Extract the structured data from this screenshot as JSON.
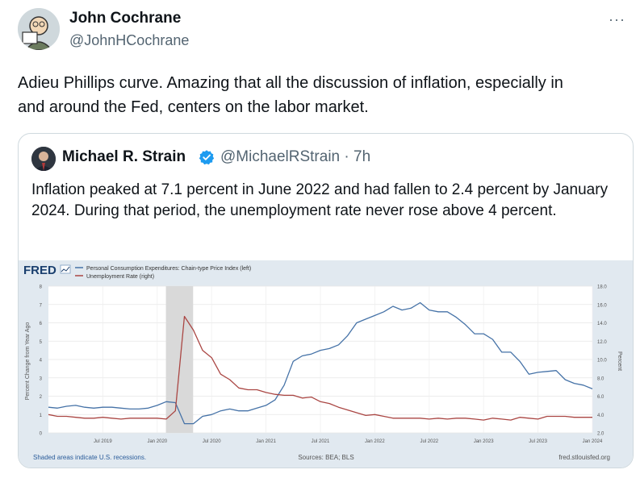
{
  "tweet": {
    "author_name": "John Cochrane",
    "author_handle": "@JohnHCochrane",
    "more_icon": "···",
    "text": "Adieu Phillips curve. Amazing that all the discussion of inflation, especially in and around the Fed, centers on the labor market."
  },
  "quote": {
    "author_name": "Michael R. Strain",
    "author_handle": "@MichaelRStrain",
    "separator": "·",
    "time": "7h",
    "text": "Inflation peaked at 7.1 percent in June 2022 and had fallen to 2.4 percent by January 2024. During that period, the unemployment rate never rose above 4 percent."
  },
  "chart_data": {
    "type": "line",
    "logo": "FRED",
    "legend": [
      {
        "name": "Personal Consumption Expenditures: Chain-type Price Index (left)",
        "color": "#4572a7"
      },
      {
        "name": "Unemployment Rate (right)",
        "color": "#aa4643"
      }
    ],
    "ylabel_left": "Percent Change from Year Ago",
    "ylabel_right": "Percent",
    "y_left_ticks": [
      "0",
      "1",
      "2",
      "3",
      "4",
      "5",
      "6",
      "7",
      "8"
    ],
    "y_right_ticks": [
      "2.0",
      "4.0",
      "6.0",
      "8.0",
      "10.0",
      "12.0",
      "14.0",
      "16.0",
      "18.0"
    ],
    "ylim_left": [
      0,
      8
    ],
    "ylim_right": [
      2,
      18
    ],
    "x_ticks": [
      "Jul 2019",
      "Jan 2020",
      "Jul 2020",
      "Jan 2021",
      "Jul 2021",
      "Jan 2022",
      "Jul 2022",
      "Jan 2023",
      "Jul 2023",
      "Jan 2024"
    ],
    "recession": [
      2020.08,
      2020.33
    ],
    "series": [
      {
        "name": "Personal Consumption Expenditures: Chain-type Price Index (left)",
        "axis": "left",
        "x": [
          2019.0,
          2019.083,
          2019.167,
          2019.25,
          2019.333,
          2019.417,
          2019.5,
          2019.583,
          2019.667,
          2019.75,
          2019.833,
          2019.917,
          2020.0,
          2020.083,
          2020.167,
          2020.25,
          2020.333,
          2020.417,
          2020.5,
          2020.583,
          2020.667,
          2020.75,
          2020.833,
          2020.917,
          2021.0,
          2021.083,
          2021.167,
          2021.25,
          2021.333,
          2021.417,
          2021.5,
          2021.583,
          2021.667,
          2021.75,
          2021.833,
          2021.917,
          2022.0,
          2022.083,
          2022.167,
          2022.25,
          2022.333,
          2022.417,
          2022.5,
          2022.583,
          2022.667,
          2022.75,
          2022.833,
          2022.917,
          2023.0,
          2023.083,
          2023.167,
          2023.25,
          2023.333,
          2023.417,
          2023.5,
          2023.583,
          2023.667,
          2023.75,
          2023.833,
          2023.917,
          2024.0
        ],
        "values": [
          1.4,
          1.35,
          1.45,
          1.5,
          1.4,
          1.35,
          1.4,
          1.4,
          1.35,
          1.3,
          1.3,
          1.35,
          1.5,
          1.7,
          1.65,
          0.5,
          0.5,
          0.9,
          1.0,
          1.2,
          1.3,
          1.2,
          1.2,
          1.35,
          1.5,
          1.8,
          2.6,
          3.9,
          4.2,
          4.3,
          4.5,
          4.6,
          4.8,
          5.3,
          6.0,
          6.2,
          6.4,
          6.6,
          6.9,
          6.7,
          6.8,
          7.1,
          6.7,
          6.6,
          6.6,
          6.3,
          5.9,
          5.4,
          5.4,
          5.1,
          4.4,
          4.4,
          3.9,
          3.2,
          3.3,
          3.35,
          3.4,
          2.9,
          2.7,
          2.6,
          2.4
        ]
      },
      {
        "name": "Unemployment Rate (right)",
        "axis": "right",
        "x": [
          2019.0,
          2019.083,
          2019.167,
          2019.25,
          2019.333,
          2019.417,
          2019.5,
          2019.583,
          2019.667,
          2019.75,
          2019.833,
          2019.917,
          2020.0,
          2020.083,
          2020.167,
          2020.25,
          2020.333,
          2020.417,
          2020.5,
          2020.583,
          2020.667,
          2020.75,
          2020.833,
          2020.917,
          2021.0,
          2021.083,
          2021.167,
          2021.25,
          2021.333,
          2021.417,
          2021.5,
          2021.583,
          2021.667,
          2021.75,
          2021.833,
          2021.917,
          2022.0,
          2022.083,
          2022.167,
          2022.25,
          2022.333,
          2022.417,
          2022.5,
          2022.583,
          2022.667,
          2022.75,
          2022.833,
          2022.917,
          2023.0,
          2023.083,
          2023.167,
          2023.25,
          2023.333,
          2023.417,
          2023.5,
          2023.583,
          2023.667,
          2023.75,
          2023.833,
          2023.917,
          2024.0
        ],
        "values": [
          4.0,
          3.8,
          3.8,
          3.7,
          3.6,
          3.6,
          3.7,
          3.6,
          3.5,
          3.6,
          3.6,
          3.6,
          3.6,
          3.5,
          4.4,
          14.7,
          13.2,
          11.0,
          10.2,
          8.4,
          7.8,
          6.9,
          6.7,
          6.7,
          6.4,
          6.2,
          6.1,
          6.1,
          5.8,
          5.9,
          5.4,
          5.2,
          4.8,
          4.5,
          4.2,
          3.9,
          4.0,
          3.8,
          3.6,
          3.6,
          3.6,
          3.6,
          3.5,
          3.6,
          3.5,
          3.6,
          3.6,
          3.5,
          3.4,
          3.6,
          3.5,
          3.4,
          3.7,
          3.6,
          3.5,
          3.8,
          3.8,
          3.8,
          3.7,
          3.7,
          3.7
        ]
      }
    ],
    "footer_left": "Shaded areas indicate U.S. recessions.",
    "footer_center": "Sources: BEA; BLS",
    "footer_right": "fred.stlouisfed.org",
    "colors": {
      "pce": "#4572a7",
      "unrate": "#aa4643",
      "recession": "#d9d9d9"
    }
  }
}
